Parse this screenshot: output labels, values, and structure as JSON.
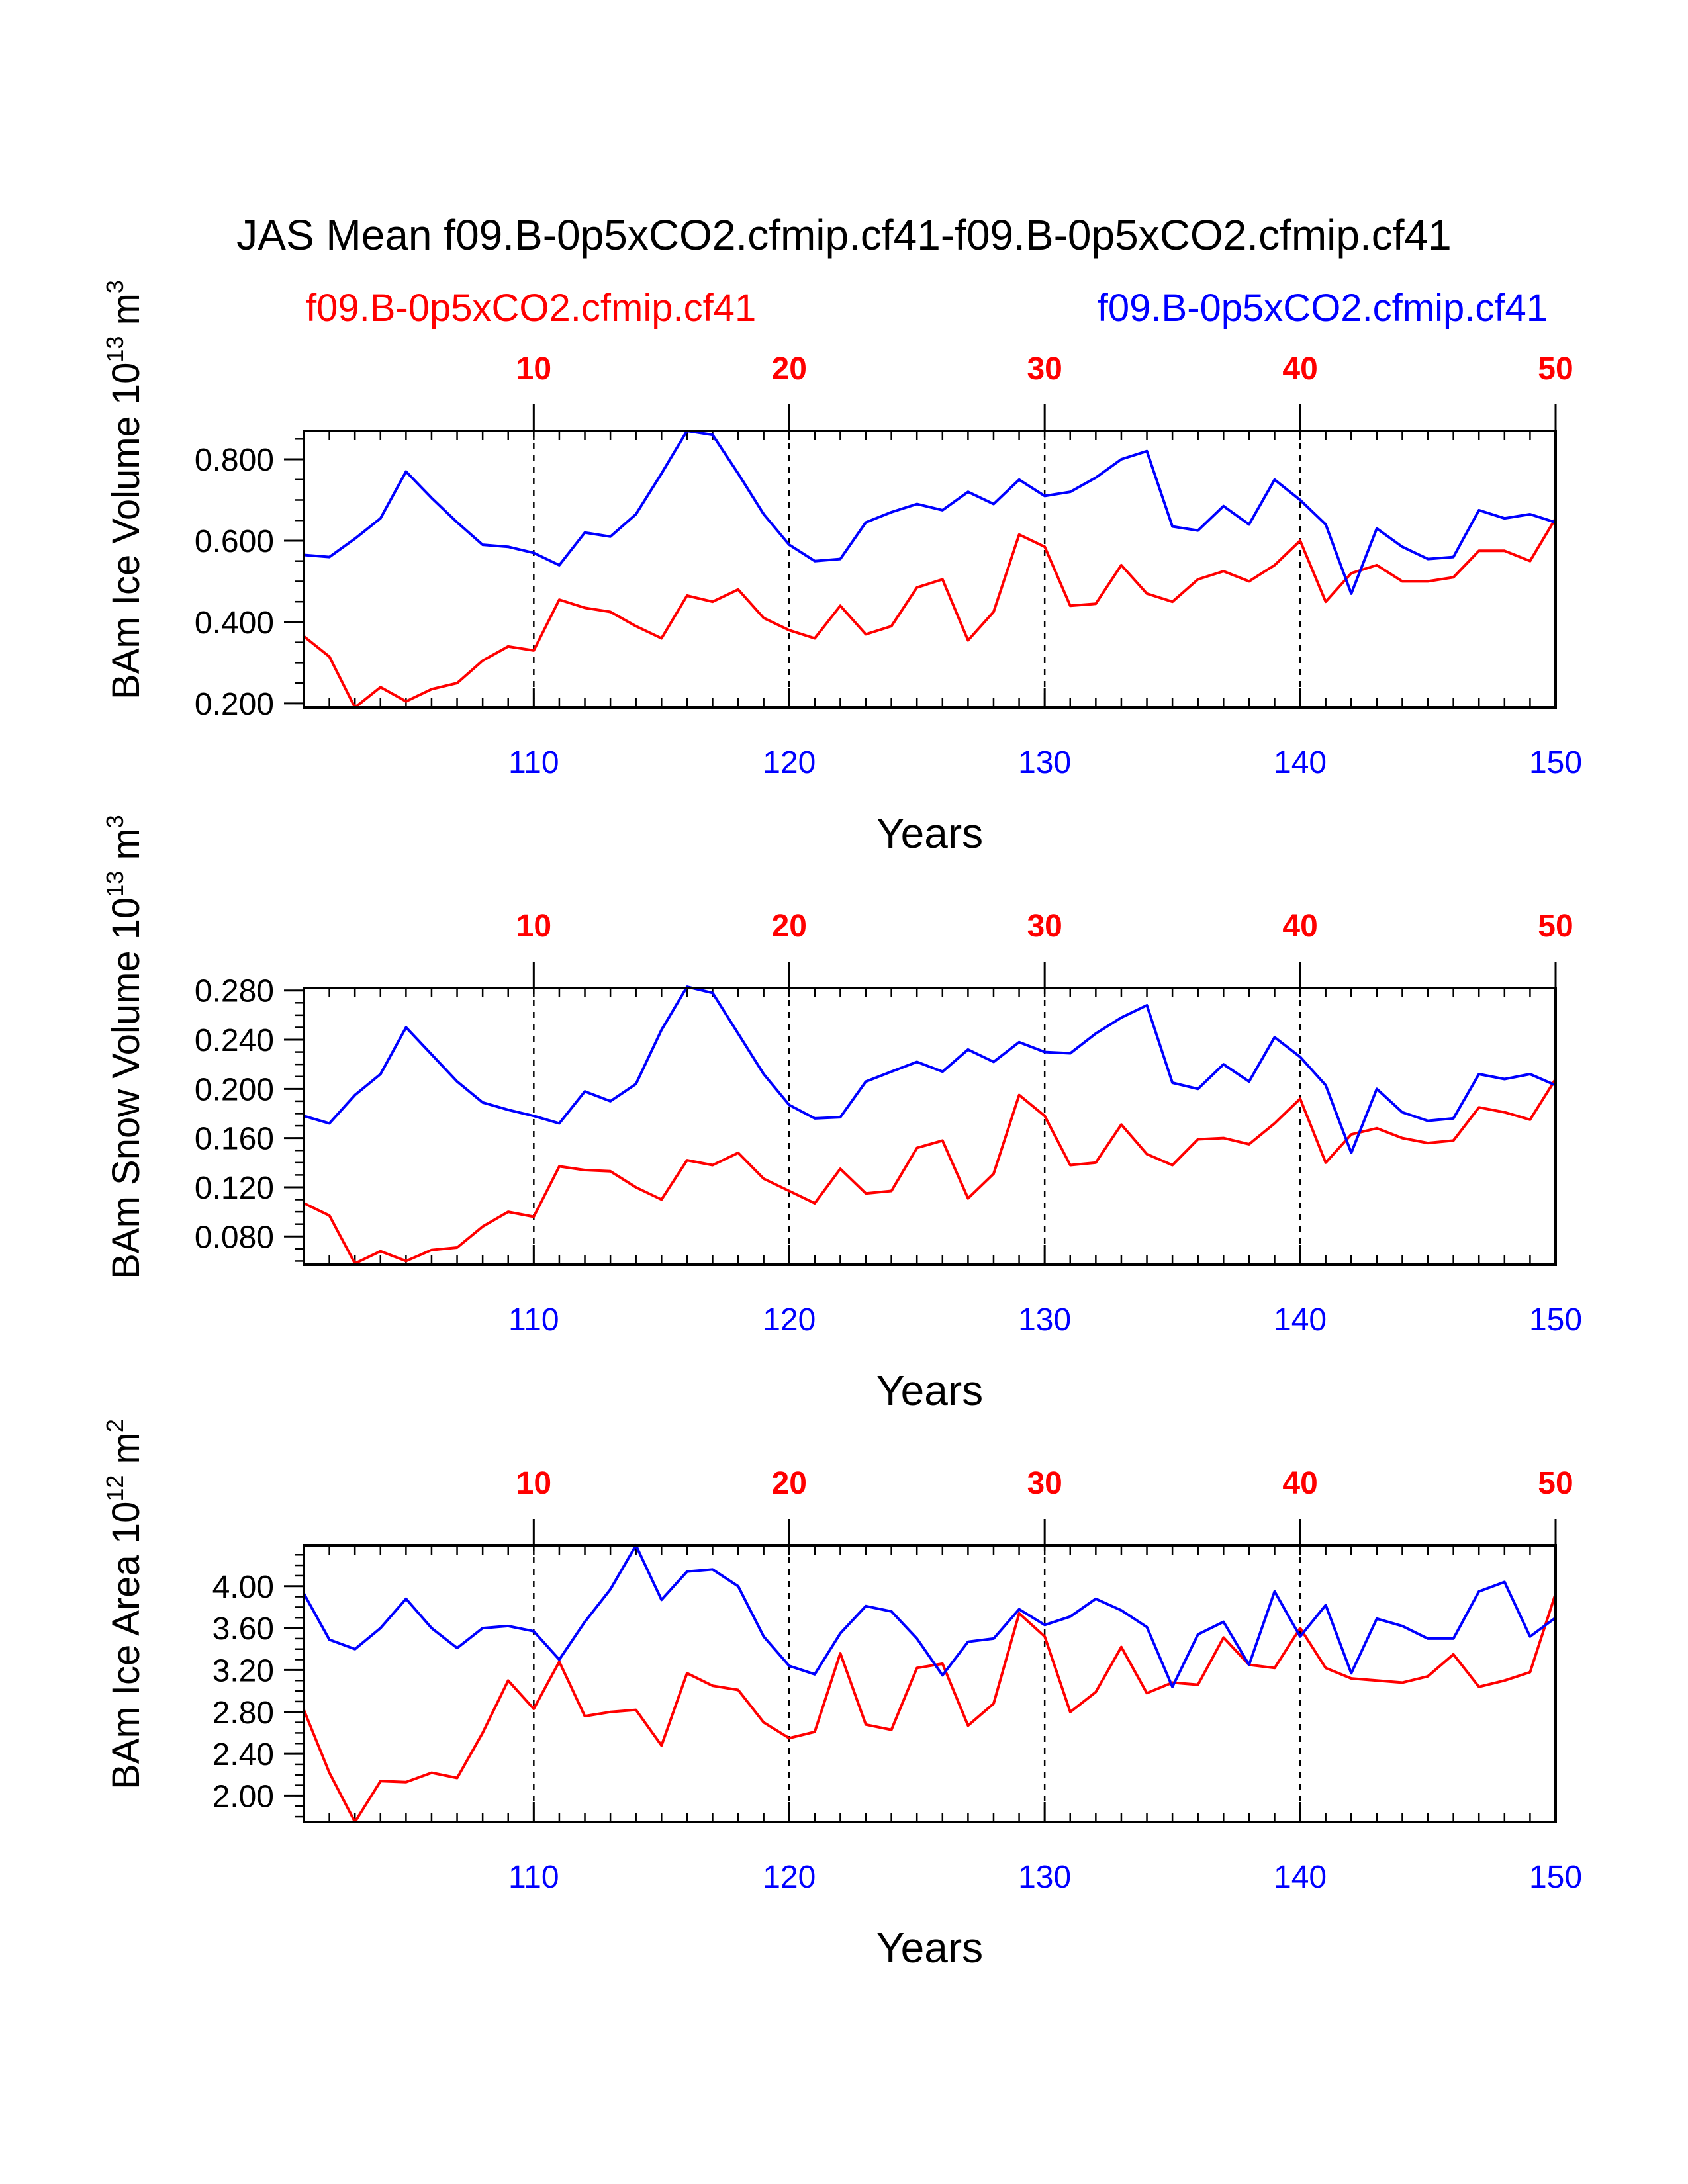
{
  "title": "JAS Mean f09.B-0p5xCO2.cfmip.cf41-f09.B-0p5xCO2.cfmip.cf41",
  "legend": {
    "red": "f09.B-0p5xCO2.cfmip.cf41",
    "blue": "f09.B-0p5xCO2.cfmip.cf41"
  },
  "colors": {
    "red": "#ff0000",
    "blue": "#0000ff",
    "axis": "#000000"
  },
  "chart_data": [
    {
      "type": "line",
      "ylabel": "BAm Ice Volume 10",
      "ylabel_exp": "13",
      "ylabel_unit": "m",
      "ylabel_unit_exp": "3",
      "xlabel": "Years",
      "x_bottom_range": [
        101,
        150
      ],
      "x_top_range": [
        1,
        50
      ],
      "x_bottom_ticks": [
        "110",
        "120",
        "130",
        "140",
        "150"
      ],
      "x_top_ticks": [
        "10",
        "20",
        "30",
        "40",
        "50"
      ],
      "ylim": [
        0.19,
        0.87
      ],
      "yticks": [
        0.2,
        0.4,
        0.6,
        0.8
      ],
      "ytick_labels": [
        "0.200",
        "0.400",
        "0.600",
        "0.800"
      ],
      "series": [
        {
          "name": "f09.B-0p5xCO2.cfmip.cf41",
          "color": "red",
          "values": [
            0.365,
            0.315,
            0.19,
            0.24,
            0.205,
            0.235,
            0.25,
            0.305,
            0.34,
            0.33,
            0.455,
            0.435,
            0.425,
            0.39,
            0.36,
            0.465,
            0.45,
            0.48,
            0.41,
            0.38,
            0.36,
            0.44,
            0.37,
            0.39,
            0.485,
            0.505,
            0.355,
            0.425,
            0.615,
            0.585,
            0.44,
            0.445,
            0.54,
            0.47,
            0.45,
            0.505,
            0.525,
            0.5,
            0.54,
            0.6,
            0.45,
            0.52,
            0.54,
            0.5,
            0.5,
            0.51,
            0.575,
            0.575,
            0.55,
            0.655
          ]
        },
        {
          "name": "f09.B-0p5xCO2.cfmip.cf41",
          "color": "blue",
          "values": [
            0.565,
            0.56,
            0.605,
            0.655,
            0.77,
            0.705,
            0.645,
            0.59,
            0.585,
            0.57,
            0.54,
            0.62,
            0.61,
            0.665,
            0.765,
            0.87,
            0.86,
            0.765,
            0.665,
            0.59,
            0.55,
            0.555,
            0.645,
            0.67,
            0.69,
            0.675,
            0.72,
            0.69,
            0.75,
            0.71,
            0.72,
            0.755,
            0.8,
            0.82,
            0.635,
            0.625,
            0.685,
            0.64,
            0.75,
            0.7,
            0.64,
            0.47,
            0.63,
            0.585,
            0.555,
            0.56,
            0.675,
            0.655,
            0.665,
            0.645
          ]
        }
      ]
    },
    {
      "type": "line",
      "ylabel": "BAm Snow Volume 10",
      "ylabel_exp": "13",
      "ylabel_unit": "m",
      "ylabel_unit_exp": "3",
      "xlabel": "Years",
      "x_bottom_range": [
        101,
        150
      ],
      "x_top_range": [
        1,
        50
      ],
      "x_bottom_ticks": [
        "110",
        "120",
        "130",
        "140",
        "150"
      ],
      "x_top_ticks": [
        "10",
        "20",
        "30",
        "40",
        "50"
      ],
      "ylim": [
        0.057,
        0.282
      ],
      "yticks": [
        0.08,
        0.12,
        0.16,
        0.2,
        0.24,
        0.28
      ],
      "ytick_labels": [
        "0.080",
        "0.120",
        "0.160",
        "0.200",
        "0.240",
        "0.280"
      ],
      "series": [
        {
          "name": "f09.B-0p5xCO2.cfmip.cf41",
          "color": "red",
          "values": [
            0.107,
            0.097,
            0.058,
            0.068,
            0.06,
            0.069,
            0.071,
            0.088,
            0.1,
            0.096,
            0.137,
            0.134,
            0.133,
            0.12,
            0.11,
            0.142,
            0.138,
            0.148,
            0.127,
            0.117,
            0.107,
            0.135,
            0.115,
            0.117,
            0.152,
            0.158,
            0.111,
            0.131,
            0.195,
            0.178,
            0.138,
            0.14,
            0.171,
            0.147,
            0.138,
            0.159,
            0.16,
            0.155,
            0.172,
            0.192,
            0.14,
            0.163,
            0.168,
            0.16,
            0.156,
            0.158,
            0.185,
            0.181,
            0.175,
            0.208
          ]
        },
        {
          "name": "f09.B-0p5xCO2.cfmip.cf41",
          "color": "blue",
          "values": [
            0.178,
            0.172,
            0.195,
            0.212,
            0.25,
            0.228,
            0.206,
            0.189,
            0.183,
            0.178,
            0.172,
            0.198,
            0.19,
            0.204,
            0.248,
            0.283,
            0.278,
            0.245,
            0.212,
            0.187,
            0.176,
            0.177,
            0.206,
            0.214,
            0.222,
            0.214,
            0.232,
            0.222,
            0.238,
            0.23,
            0.229,
            0.245,
            0.258,
            0.268,
            0.205,
            0.2,
            0.22,
            0.206,
            0.242,
            0.226,
            0.203,
            0.148,
            0.2,
            0.181,
            0.174,
            0.176,
            0.212,
            0.208,
            0.212,
            0.203
          ]
        }
      ]
    },
    {
      "type": "line",
      "ylabel": "BAm Ice Area 10",
      "ylabel_exp": "12",
      "ylabel_unit": "m",
      "ylabel_unit_exp": "2",
      "xlabel": "Years",
      "x_bottom_range": [
        101,
        150
      ],
      "x_top_range": [
        1,
        50
      ],
      "x_bottom_ticks": [
        "110",
        "120",
        "130",
        "140",
        "150"
      ],
      "x_top_ticks": [
        "10",
        "20",
        "30",
        "40",
        "50"
      ],
      "ylim": [
        1.75,
        4.39
      ],
      "yticks": [
        2.0,
        2.4,
        2.8,
        3.2,
        3.6,
        4.0
      ],
      "ytick_labels": [
        "2.00",
        "2.40",
        "2.80",
        "3.20",
        "3.60",
        "4.00"
      ],
      "series": [
        {
          "name": "f09.B-0p5xCO2.cfmip.cf41",
          "color": "red",
          "values": [
            2.82,
            2.22,
            1.75,
            2.14,
            2.13,
            2.22,
            2.17,
            2.6,
            3.1,
            2.83,
            3.28,
            2.76,
            2.8,
            2.82,
            2.48,
            3.17,
            3.05,
            3.01,
            2.7,
            2.55,
            2.61,
            3.36,
            2.68,
            2.63,
            3.22,
            3.26,
            2.67,
            2.88,
            3.74,
            3.52,
            2.8,
            2.99,
            3.42,
            2.98,
            3.08,
            3.06,
            3.51,
            3.25,
            3.22,
            3.6,
            3.22,
            3.12,
            3.1,
            3.08,
            3.14,
            3.35,
            3.04,
            3.1,
            3.18,
            3.93
          ]
        },
        {
          "name": "f09.B-0p5xCO2.cfmip.cf41",
          "color": "blue",
          "values": [
            3.93,
            3.49,
            3.4,
            3.6,
            3.88,
            3.6,
            3.41,
            3.6,
            3.62,
            3.57,
            3.3,
            3.66,
            3.97,
            4.39,
            3.87,
            4.14,
            4.16,
            4.0,
            3.52,
            3.24,
            3.16,
            3.55,
            3.81,
            3.76,
            3.5,
            3.15,
            3.47,
            3.5,
            3.78,
            3.63,
            3.71,
            3.88,
            3.77,
            3.61,
            3.04,
            3.54,
            3.66,
            3.25,
            3.95,
            3.52,
            3.82,
            3.17,
            3.69,
            3.62,
            3.5,
            3.5,
            3.95,
            4.04,
            3.52,
            3.7
          ]
        }
      ]
    }
  ]
}
